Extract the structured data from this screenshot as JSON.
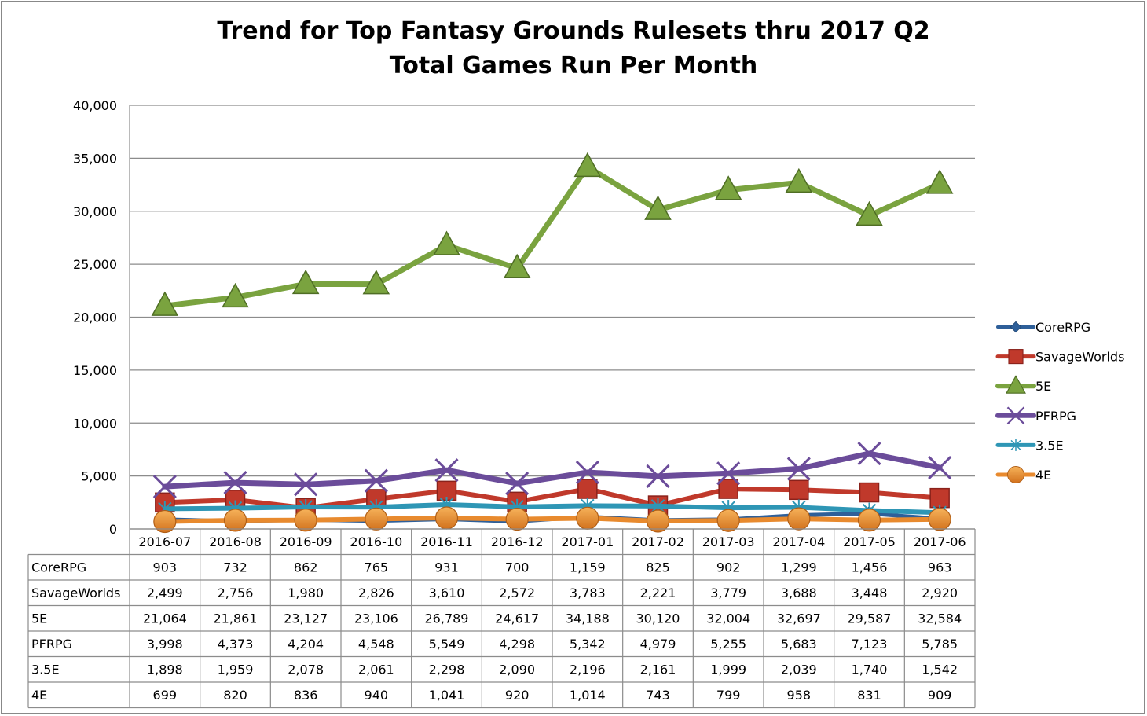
{
  "chart_data": {
    "type": "line",
    "title": "Trend for Top Fantasy Grounds Rulesets thru 2017 Q2",
    "subtitle": "Total Games Run Per Month",
    "categories": [
      "2016-07",
      "2016-08",
      "2016-09",
      "2016-10",
      "2016-11",
      "2016-12",
      "2017-01",
      "2017-02",
      "2017-03",
      "2017-04",
      "2017-05",
      "2017-06"
    ],
    "ylim": [
      0,
      40000
    ],
    "yticks": [
      0,
      5000,
      10000,
      15000,
      20000,
      25000,
      30000,
      35000,
      40000
    ],
    "ytick_labels": [
      "0",
      "5,000",
      "10,000",
      "15,000",
      "20,000",
      "25,000",
      "30,000",
      "35,000",
      "40,000"
    ],
    "grid": true,
    "legend_position": "right",
    "series": [
      {
        "name": "CoreRPG",
        "color": "#2E5F99",
        "marker": "diamond",
        "values": [
          903,
          732,
          862,
          765,
          931,
          700,
          1159,
          825,
          902,
          1299,
          1456,
          963
        ],
        "labels": [
          "903",
          "732",
          "862",
          "765",
          "931",
          "700",
          "1,159",
          "825",
          "902",
          "1,299",
          "1,456",
          "963"
        ]
      },
      {
        "name": "SavageWorlds",
        "color": "#C0392B",
        "marker": "square",
        "values": [
          2499,
          2756,
          1980,
          2826,
          3610,
          2572,
          3783,
          2221,
          3779,
          3688,
          3448,
          2920
        ],
        "labels": [
          "2,499",
          "2,756",
          "1,980",
          "2,826",
          "3,610",
          "2,572",
          "3,783",
          "2,221",
          "3,779",
          "3,688",
          "3,448",
          "2,920"
        ]
      },
      {
        "name": "5E",
        "color": "#7AA33F",
        "marker": "triangle",
        "values": [
          21064,
          21861,
          23127,
          23106,
          26789,
          24617,
          34188,
          30120,
          32004,
          32697,
          29587,
          32584
        ],
        "labels": [
          "21,064",
          "21,861",
          "23,127",
          "23,106",
          "26,789",
          "24,617",
          "34,188",
          "30,120",
          "32,004",
          "32,697",
          "29,587",
          "32,584"
        ]
      },
      {
        "name": "PFRPG",
        "color": "#6B4C9A",
        "marker": "x",
        "values": [
          3998,
          4373,
          4204,
          4548,
          5549,
          4298,
          5342,
          4979,
          5255,
          5683,
          7123,
          5785
        ],
        "labels": [
          "3,998",
          "4,373",
          "4,204",
          "4,548",
          "5,549",
          "4,298",
          "5,342",
          "4,979",
          "5,255",
          "5,683",
          "7,123",
          "5,785"
        ]
      },
      {
        "name": "3.5E",
        "color": "#2E96B5",
        "marker": "star",
        "values": [
          1898,
          1959,
          2078,
          2061,
          2298,
          2090,
          2196,
          2161,
          1999,
          2039,
          1740,
          1542
        ],
        "labels": [
          "1,898",
          "1,959",
          "2,078",
          "2,061",
          "2,298",
          "2,090",
          "2,196",
          "2,161",
          "1,999",
          "2,039",
          "1,740",
          "1,542"
        ]
      },
      {
        "name": "4E",
        "color": "#E88A2E",
        "marker": "circle",
        "values": [
          699,
          820,
          836,
          940,
          1041,
          920,
          1014,
          743,
          799,
          958,
          831,
          909
        ],
        "labels": [
          "699",
          "820",
          "836",
          "940",
          "1,041",
          "920",
          "1,014",
          "743",
          "799",
          "958",
          "831",
          "909"
        ]
      }
    ]
  }
}
